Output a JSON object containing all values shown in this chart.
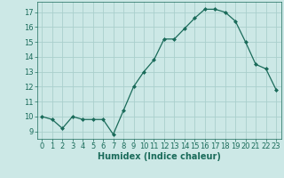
{
  "x": [
    0,
    1,
    2,
    3,
    4,
    5,
    6,
    7,
    8,
    9,
    10,
    11,
    12,
    13,
    14,
    15,
    16,
    17,
    18,
    19,
    20,
    21,
    22,
    23
  ],
  "y": [
    10.0,
    9.8,
    9.2,
    10.0,
    9.8,
    9.8,
    9.8,
    8.8,
    10.4,
    12.0,
    13.0,
    13.8,
    15.2,
    15.2,
    15.9,
    16.6,
    17.2,
    17.2,
    17.0,
    16.4,
    15.0,
    13.5,
    13.2,
    11.8
  ],
  "line_color": "#1a6b5a",
  "marker": "D",
  "marker_size": 2.0,
  "bg_color": "#cce8e6",
  "grid_color": "#aacfcc",
  "xlabel": "Humidex (Indice chaleur)",
  "ylim": [
    8.5,
    17.7
  ],
  "xlim": [
    -0.5,
    23.5
  ],
  "yticks": [
    9,
    10,
    11,
    12,
    13,
    14,
    15,
    16,
    17
  ],
  "xticks": [
    0,
    1,
    2,
    3,
    4,
    5,
    6,
    7,
    8,
    9,
    10,
    11,
    12,
    13,
    14,
    15,
    16,
    17,
    18,
    19,
    20,
    21,
    22,
    23
  ],
  "xlabel_fontsize": 7,
  "tick_fontsize": 6,
  "line_width": 0.9
}
